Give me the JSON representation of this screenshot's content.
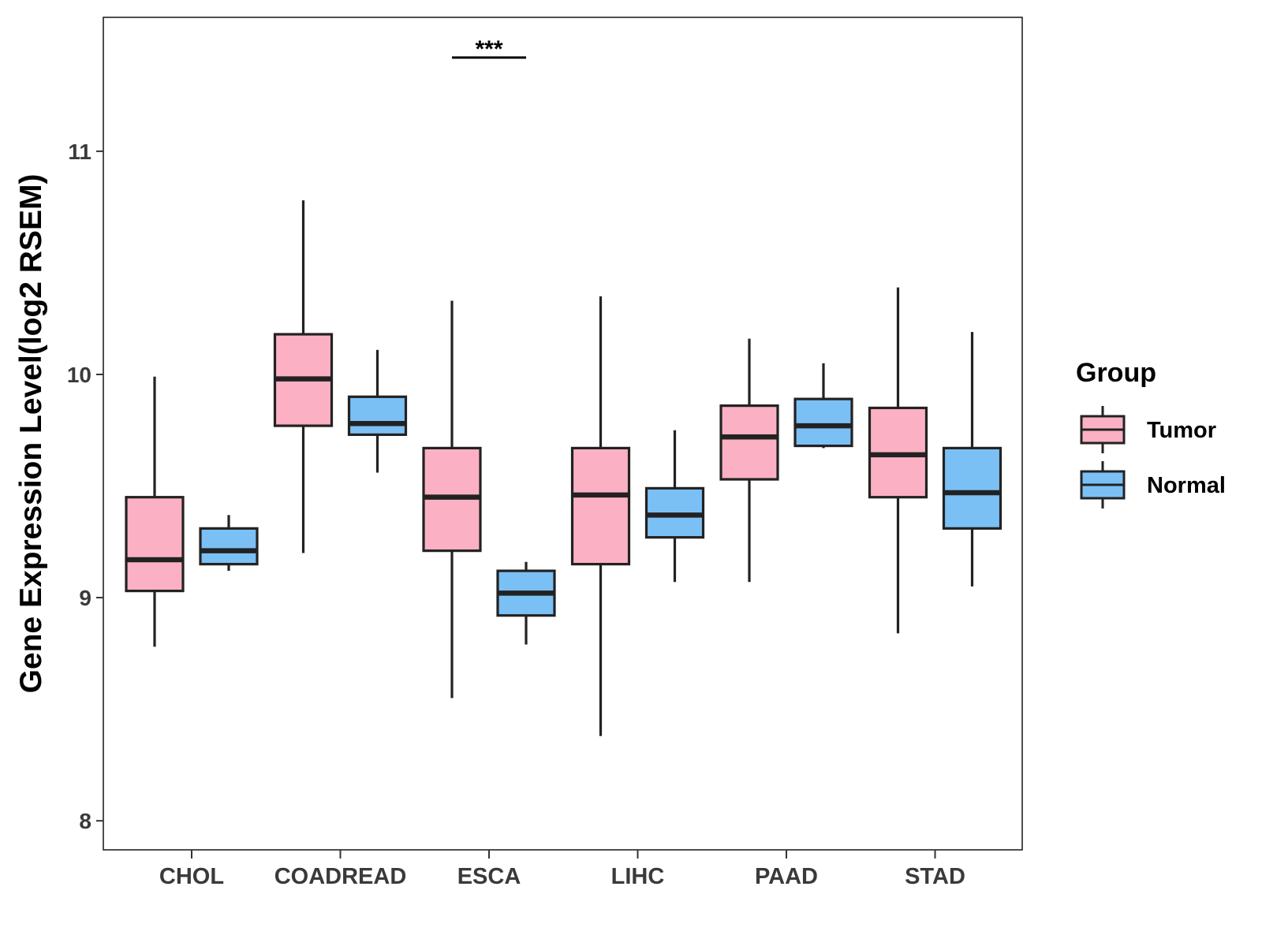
{
  "chart_data": {
    "type": "box",
    "ylabel": "Gene Expression Level(log2 RSEM)",
    "xlabel": "",
    "ylim": [
      7.87,
      11.6
    ],
    "yticks": [
      8,
      9,
      10,
      11
    ],
    "categories": [
      "CHOL",
      "COADREAD",
      "ESCA",
      "LIHC",
      "PAAD",
      "STAD"
    ],
    "series": [
      {
        "name": "Tumor",
        "color": "#fbb1c3",
        "boxes": [
          {
            "min": 8.78,
            "q1": 9.03,
            "median": 9.17,
            "q3": 9.45,
            "max": 9.99
          },
          {
            "min": 9.2,
            "q1": 9.77,
            "median": 9.98,
            "q3": 10.18,
            "max": 10.78
          },
          {
            "min": 8.55,
            "q1": 9.21,
            "median": 9.45,
            "q3": 9.67,
            "max": 10.33
          },
          {
            "min": 8.38,
            "q1": 9.15,
            "median": 9.46,
            "q3": 9.67,
            "max": 10.35
          },
          {
            "min": 9.07,
            "q1": 9.53,
            "median": 9.72,
            "q3": 9.86,
            "max": 10.16
          },
          {
            "min": 8.84,
            "q1": 9.45,
            "median": 9.64,
            "q3": 9.85,
            "max": 10.39
          }
        ]
      },
      {
        "name": "Normal",
        "color": "#7bc0f5",
        "boxes": [
          {
            "min": 9.12,
            "q1": 9.15,
            "median": 9.21,
            "q3": 9.31,
            "max": 9.37
          },
          {
            "min": 9.56,
            "q1": 9.73,
            "median": 9.78,
            "q3": 9.9,
            "max": 10.11
          },
          {
            "min": 8.79,
            "q1": 8.92,
            "median": 9.02,
            "q3": 9.12,
            "max": 9.16
          },
          {
            "min": 9.07,
            "q1": 9.27,
            "median": 9.37,
            "q3": 9.49,
            "max": 9.75
          },
          {
            "min": 9.67,
            "q1": 9.68,
            "median": 9.77,
            "q3": 9.89,
            "max": 10.05
          },
          {
            "min": 9.05,
            "q1": 9.31,
            "median": 9.47,
            "q3": 9.67,
            "max": 10.19
          }
        ]
      }
    ],
    "annotations": [
      {
        "text": "***",
        "category": "ESCA",
        "y": 11.42
      }
    ],
    "legend": {
      "title": "Group",
      "position": "right"
    },
    "grid": false
  }
}
